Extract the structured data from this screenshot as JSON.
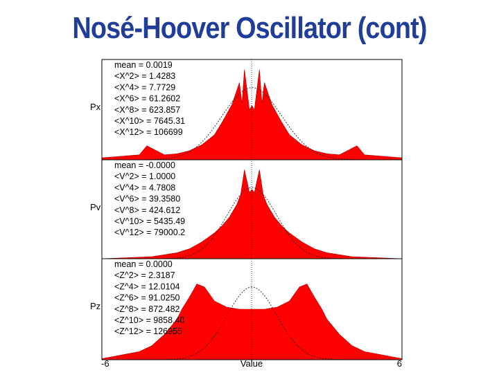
{
  "title": "Nosé-Hoover Oscillator (cont)",
  "chart_data": {
    "type": "area",
    "title": "Nosé-Hoover Oscillator (cont)",
    "xlabel": "Value",
    "xlim": [
      -6,
      6
    ],
    "x_tick_labels": {
      "min": "-6",
      "max": "6"
    },
    "fill_color": "#ff0000",
    "panels": [
      {
        "label": "Px",
        "stats": [
          "mean =  0.0019",
          "<X^2> =  1.4283",
          "<X^4> =  7.7729",
          "<X^6> = 61.2602",
          "<X^8> = 623.857",
          "<X^10> = 7645.31",
          "<X^12> = 106699"
        ],
        "reference_gaussian_variance": 1.4283,
        "histogram": {
          "x": [
            -6,
            -4.5,
            -4.2,
            -3.5,
            -3.0,
            -2.5,
            -2.0,
            -1.5,
            -1.2,
            -0.8,
            -0.5,
            -0.4,
            -0.3,
            -0.1,
            0,
            0.1,
            0.3,
            0.4,
            0.5,
            0.8,
            1.2,
            1.5,
            2.0,
            2.5,
            3.0,
            3.5,
            4.2,
            4.5,
            6
          ],
          "y": [
            0.02,
            0.05,
            0.14,
            0.05,
            0.06,
            0.09,
            0.15,
            0.25,
            0.37,
            0.55,
            0.77,
            0.56,
            0.9,
            0.5,
            0.54,
            0.5,
            0.9,
            0.56,
            0.77,
            0.55,
            0.37,
            0.25,
            0.15,
            0.09,
            0.06,
            0.05,
            0.14,
            0.05,
            0.02
          ]
        }
      },
      {
        "label": "Pv",
        "stats": [
          "mean = -0.0000",
          "<V^2> =  1.0000",
          "<V^4> =  4.7808",
          "<V^6> = 39.3580",
          "<V^8> = 424.612",
          "<V^10> = 5435.49",
          "<V^12> = 79000.2"
        ],
        "reference_gaussian_variance": 1.0,
        "histogram": {
          "x": [
            -6,
            -4.0,
            -3.0,
            -2.5,
            -2.0,
            -1.5,
            -1.2,
            -0.9,
            -0.6,
            -0.45,
            -0.3,
            -0.1,
            0,
            0.1,
            0.3,
            0.45,
            0.6,
            0.9,
            1.2,
            1.5,
            2.0,
            2.5,
            3.0,
            4.0,
            6
          ],
          "y": [
            0.0,
            0.02,
            0.06,
            0.1,
            0.17,
            0.26,
            0.33,
            0.42,
            0.55,
            0.65,
            0.9,
            0.67,
            0.7,
            0.67,
            0.9,
            0.65,
            0.55,
            0.42,
            0.33,
            0.26,
            0.17,
            0.1,
            0.06,
            0.02,
            0.0
          ]
        }
      },
      {
        "label": "Pz",
        "stats": [
          "mean =  0.0000",
          "<Z^2> =  2.3187",
          "<Z^4> = 12.0104",
          "<Z^6> = 91.0250",
          "<Z^8> = 872.482",
          "<Z^10> = 9858.40",
          "<Z^12> = 126955"
        ],
        "reference_gaussian_variance": 1.0,
        "histogram": {
          "x": [
            -6,
            -4.5,
            -4.0,
            -3.5,
            -3.0,
            -2.8,
            -2.5,
            -2.2,
            -1.9,
            -1.5,
            -1.0,
            -0.5,
            0,
            0.5,
            1.0,
            1.5,
            1.9,
            2.2,
            2.5,
            2.8,
            3.0,
            3.5,
            4.0,
            4.5,
            6
          ],
          "y": [
            0.01,
            0.08,
            0.14,
            0.25,
            0.4,
            0.5,
            0.62,
            0.75,
            0.72,
            0.58,
            0.52,
            0.5,
            0.5,
            0.5,
            0.52,
            0.58,
            0.72,
            0.75,
            0.62,
            0.5,
            0.4,
            0.25,
            0.14,
            0.08,
            0.01
          ]
        }
      }
    ]
  }
}
